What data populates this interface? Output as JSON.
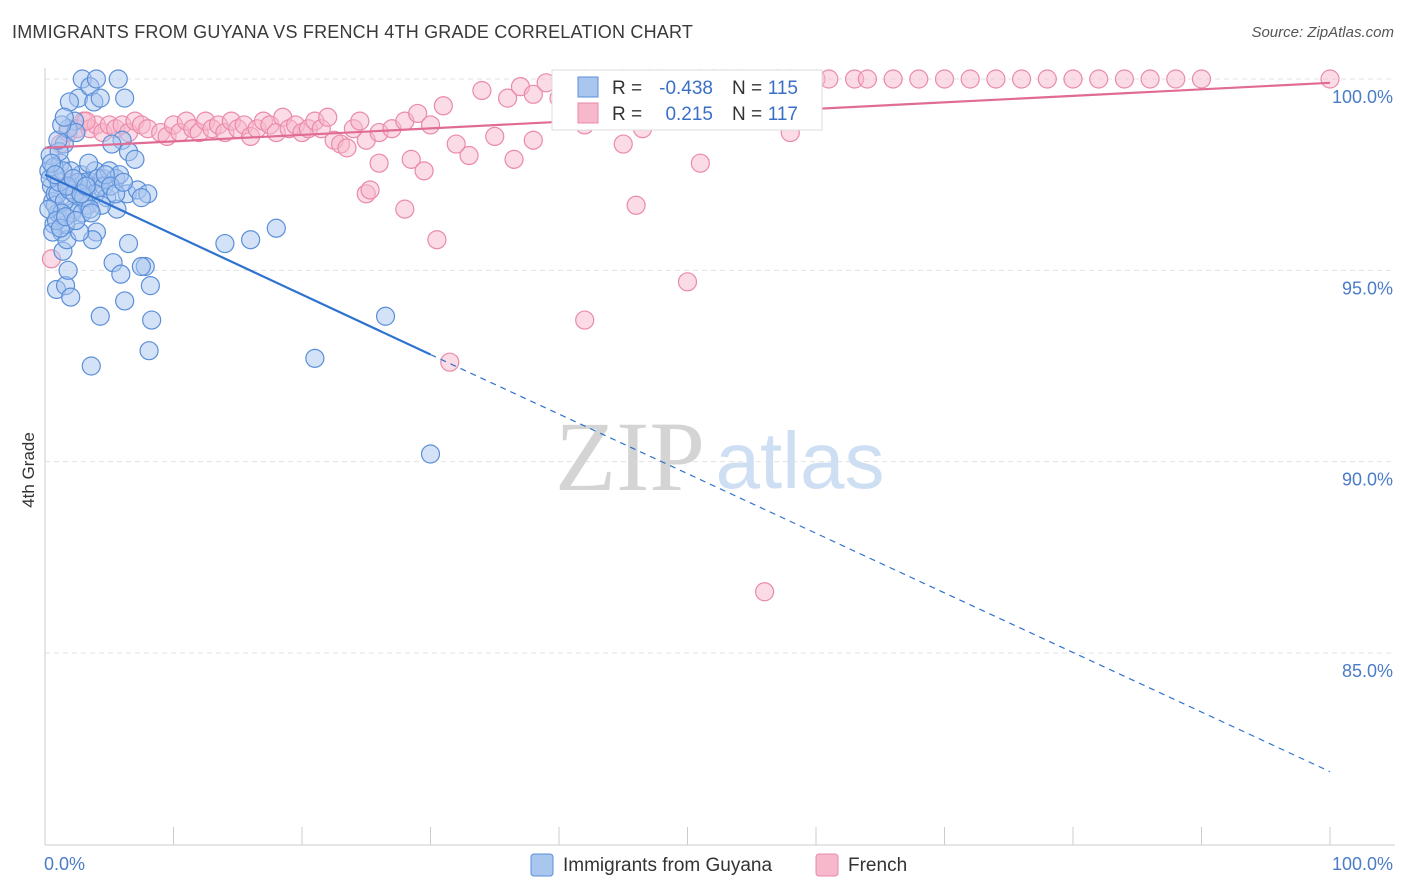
{
  "title": "IMMIGRANTS FROM GUYANA VS FRENCH 4TH GRADE CORRELATION CHART",
  "source": "Source: ZipAtlas.com",
  "watermark": {
    "part1": "ZIP",
    "part2": "atlas"
  },
  "chart_data": {
    "type": "scatter",
    "ylabel": "4th Grade",
    "xlim": [
      0,
      100
    ],
    "ylim": [
      80.5,
      100.3
    ],
    "x_tick_labels": [
      "0.0%",
      "100.0%"
    ],
    "y_ticks": [
      {
        "value": 100,
        "label": "100.0%"
      },
      {
        "value": 95,
        "label": "95.0%"
      },
      {
        "value": 90,
        "label": "90.0%"
      },
      {
        "value": 85,
        "label": "85.0%"
      }
    ],
    "colors": {
      "guyana_fill": "#a9c6ef",
      "guyana_stroke": "#5a8fd8",
      "guyana_line": "#2f72d0",
      "french_fill": "#f7b8cb",
      "french_stroke": "#ea8aaa",
      "french_line": "#e06b95",
      "tick_text": "#4a7cc7",
      "grid": "#e2e2e2"
    },
    "legend": {
      "rows": [
        {
          "r_label": "R =",
          "r_value": "-0.438",
          "n_label": "N =",
          "n_value": "115"
        },
        {
          "r_label": "R =",
          "r_value": "0.215",
          "n_label": "N =",
          "n_value": "117"
        }
      ]
    },
    "bottom_legend": [
      "Immigrants from Guyana",
      "French"
    ],
    "trendlines": [
      {
        "series": "Immigrants from Guyana",
        "x0": 0,
        "y0": 97.5,
        "x1": 30,
        "y1": 92.8,
        "dash_to_x": 100,
        "dash_to_y": 81.9
      },
      {
        "series": "French",
        "x0": 0,
        "y0": 98.2,
        "x1": 100,
        "y1": 99.9
      }
    ],
    "series": [
      {
        "name": "Immigrants from Guyana",
        "points": [
          [
            0.3,
            97.6
          ],
          [
            0.5,
            97.2
          ],
          [
            0.6,
            96.8
          ],
          [
            0.4,
            98.0
          ],
          [
            0.7,
            96.2
          ],
          [
            0.8,
            97.0
          ],
          [
            1.0,
            96.5
          ],
          [
            1.2,
            97.8
          ],
          [
            1.3,
            96.0
          ],
          [
            1.5,
            98.3
          ],
          [
            0.9,
            94.5
          ],
          [
            1.6,
            94.6
          ],
          [
            2.0,
            94.3
          ],
          [
            1.8,
            95.0
          ],
          [
            1.4,
            95.5
          ],
          [
            1.7,
            95.8
          ],
          [
            2.2,
            96.6
          ],
          [
            2.5,
            97.2
          ],
          [
            2.8,
            97.5
          ],
          [
            3.0,
            97.0
          ],
          [
            3.3,
            96.7
          ],
          [
            3.6,
            97.3
          ],
          [
            3.9,
            97.6
          ],
          [
            4.2,
            97.2
          ],
          [
            4.5,
            97.4
          ],
          [
            5.0,
            97.6
          ],
          [
            5.5,
            97.4
          ],
          [
            6.0,
            98.4
          ],
          [
            6.5,
            98.1
          ],
          [
            7.0,
            97.9
          ],
          [
            2.6,
            99.5
          ],
          [
            2.9,
            100.0
          ],
          [
            3.5,
            99.8
          ],
          [
            3.8,
            99.4
          ],
          [
            4.0,
            100.0
          ],
          [
            4.3,
            99.5
          ],
          [
            5.7,
            100.0
          ],
          [
            6.2,
            99.5
          ],
          [
            1.9,
            99.4
          ],
          [
            2.3,
            98.9
          ],
          [
            1.1,
            98.1
          ],
          [
            1.8,
            98.7
          ],
          [
            2.4,
            98.6
          ],
          [
            3.1,
            97.3
          ],
          [
            3.4,
            97.8
          ],
          [
            4.1,
            97.4
          ],
          [
            4.6,
            97.2
          ],
          [
            5.2,
            98.3
          ],
          [
            5.8,
            97.5
          ],
          [
            6.4,
            97.0
          ],
          [
            7.2,
            97.1
          ],
          [
            8.0,
            97.0
          ],
          [
            7.5,
            96.9
          ],
          [
            4.8,
            96.9
          ],
          [
            5.6,
            96.6
          ],
          [
            4.0,
            96.0
          ],
          [
            3.7,
            95.8
          ],
          [
            2.7,
            96.0
          ],
          [
            1.6,
            96.2
          ],
          [
            0.8,
            96.7
          ],
          [
            6.5,
            95.7
          ],
          [
            7.8,
            95.1
          ],
          [
            7.5,
            95.1
          ],
          [
            8.2,
            94.6
          ],
          [
            5.3,
            95.2
          ],
          [
            5.9,
            94.9
          ],
          [
            6.2,
            94.2
          ],
          [
            4.3,
            93.8
          ],
          [
            8.3,
            93.7
          ],
          [
            8.1,
            92.9
          ],
          [
            3.6,
            92.5
          ],
          [
            14.0,
            95.7
          ],
          [
            16.0,
            95.8
          ],
          [
            18.0,
            96.1
          ],
          [
            21.0,
            92.7
          ],
          [
            26.5,
            93.8
          ],
          [
            30.0,
            90.2
          ],
          [
            2.1,
            96.5
          ],
          [
            2.9,
            96.5
          ],
          [
            3.3,
            96.9
          ],
          [
            3.9,
            97.0
          ],
          [
            4.4,
            96.7
          ],
          [
            1.0,
            97.0
          ],
          [
            1.5,
            96.8
          ],
          [
            2.0,
            97.6
          ],
          [
            2.6,
            97.3
          ],
          [
            0.6,
            96.0
          ],
          [
            1.3,
            96.5
          ],
          [
            1.9,
            97.1
          ],
          [
            2.3,
            97.0
          ],
          [
            3.0,
            96.9
          ],
          [
            3.5,
            96.6
          ],
          [
            4.7,
            97.5
          ],
          [
            5.1,
            97.2
          ],
          [
            5.5,
            97.0
          ],
          [
            6.1,
            97.3
          ],
          [
            0.4,
            97.4
          ],
          [
            0.7,
            97.7
          ],
          [
            1.1,
            97.3
          ],
          [
            1.4,
            97.6
          ],
          [
            1.7,
            97.2
          ],
          [
            2.2,
            97.4
          ],
          [
            2.8,
            97.0
          ],
          [
            3.2,
            97.2
          ],
          [
            0.3,
            96.6
          ],
          [
            0.9,
            96.3
          ],
          [
            1.2,
            96.1
          ],
          [
            1.6,
            96.4
          ],
          [
            2.4,
            96.3
          ],
          [
            3.6,
            96.5
          ],
          [
            0.5,
            97.8
          ],
          [
            0.8,
            97.5
          ],
          [
            1.0,
            98.4
          ],
          [
            1.3,
            98.8
          ],
          [
            1.5,
            99.0
          ]
        ]
      },
      {
        "name": "French",
        "points": [
          [
            0.5,
            95.3
          ],
          [
            1.2,
            98.3
          ],
          [
            1.8,
            98.6
          ],
          [
            2.5,
            98.7
          ],
          [
            3.0,
            98.9
          ],
          [
            3.5,
            98.7
          ],
          [
            4.0,
            98.8
          ],
          [
            4.5,
            98.6
          ],
          [
            5.0,
            98.8
          ],
          [
            5.5,
            98.7
          ],
          [
            6.0,
            98.8
          ],
          [
            6.5,
            98.6
          ],
          [
            7.0,
            98.9
          ],
          [
            7.5,
            98.8
          ],
          [
            8.0,
            98.7
          ],
          [
            9.0,
            98.6
          ],
          [
            9.5,
            98.5
          ],
          [
            10.0,
            98.8
          ],
          [
            10.5,
            98.6
          ],
          [
            11.0,
            98.9
          ],
          [
            11.5,
            98.7
          ],
          [
            12.0,
            98.6
          ],
          [
            12.5,
            98.9
          ],
          [
            13.0,
            98.7
          ],
          [
            13.5,
            98.8
          ],
          [
            14.0,
            98.6
          ],
          [
            14.5,
            98.9
          ],
          [
            15.0,
            98.7
          ],
          [
            15.5,
            98.8
          ],
          [
            16.0,
            98.5
          ],
          [
            16.5,
            98.7
          ],
          [
            17.0,
            98.9
          ],
          [
            17.5,
            98.8
          ],
          [
            18.0,
            98.6
          ],
          [
            18.5,
            99.0
          ],
          [
            19.0,
            98.7
          ],
          [
            19.5,
            98.8
          ],
          [
            20.0,
            98.6
          ],
          [
            20.5,
            98.7
          ],
          [
            21.0,
            98.9
          ],
          [
            21.5,
            98.7
          ],
          [
            22.0,
            99.0
          ],
          [
            22.5,
            98.4
          ],
          [
            23.0,
            98.3
          ],
          [
            23.5,
            98.2
          ],
          [
            24.0,
            98.7
          ],
          [
            24.5,
            98.9
          ],
          [
            25.0,
            98.4
          ],
          [
            26.0,
            98.6
          ],
          [
            27.0,
            98.7
          ],
          [
            28.0,
            98.9
          ],
          [
            29.0,
            99.1
          ],
          [
            30.0,
            98.8
          ],
          [
            31.0,
            99.3
          ],
          [
            32.0,
            98.3
          ],
          [
            33.0,
            98.0
          ],
          [
            34.0,
            99.7
          ],
          [
            35.0,
            98.5
          ],
          [
            36.0,
            99.5
          ],
          [
            37.0,
            99.8
          ],
          [
            38.0,
            99.6
          ],
          [
            39.0,
            99.9
          ],
          [
            40.0,
            99.5
          ],
          [
            41.0,
            99.9
          ],
          [
            42.0,
            100.0
          ],
          [
            43.0,
            99.9
          ],
          [
            44.0,
            99.8
          ],
          [
            45.0,
            100.0
          ],
          [
            46.0,
            100.0
          ],
          [
            47.0,
            100.0
          ],
          [
            48.0,
            100.0
          ],
          [
            49.0,
            99.9
          ],
          [
            50.0,
            100.0
          ],
          [
            51.0,
            100.0
          ],
          [
            52.0,
            100.0
          ],
          [
            53.0,
            100.0
          ],
          [
            54.0,
            100.0
          ],
          [
            55.0,
            100.0
          ],
          [
            56.0,
            99.8
          ],
          [
            57.0,
            100.0
          ],
          [
            58.0,
            100.0
          ],
          [
            60.0,
            100.0
          ],
          [
            61.0,
            100.0
          ],
          [
            63.0,
            100.0
          ],
          [
            64.0,
            100.0
          ],
          [
            66.0,
            100.0
          ],
          [
            68.0,
            100.0
          ],
          [
            70.0,
            100.0
          ],
          [
            72.0,
            100.0
          ],
          [
            74.0,
            100.0
          ],
          [
            76.0,
            100.0
          ],
          [
            78.0,
            100.0
          ],
          [
            80.0,
            100.0
          ],
          [
            82.0,
            100.0
          ],
          [
            84.0,
            100.0
          ],
          [
            86.0,
            100.0
          ],
          [
            88.0,
            100.0
          ],
          [
            90.0,
            100.0
          ],
          [
            100.0,
            100.0
          ],
          [
            26.0,
            97.8
          ],
          [
            25.0,
            97.0
          ],
          [
            25.3,
            97.1
          ],
          [
            28.5,
            97.9
          ],
          [
            29.5,
            97.6
          ],
          [
            28.0,
            96.6
          ],
          [
            30.5,
            95.8
          ],
          [
            38.0,
            98.4
          ],
          [
            36.5,
            97.9
          ],
          [
            42.0,
            98.8
          ],
          [
            45.0,
            98.3
          ],
          [
            46.5,
            98.7
          ],
          [
            42.0,
            99.1
          ],
          [
            42.5,
            98.9
          ],
          [
            42.0,
            93.7
          ],
          [
            46.0,
            96.7
          ],
          [
            51.0,
            97.8
          ],
          [
            58.0,
            98.6
          ],
          [
            50.0,
            94.7
          ],
          [
            31.5,
            92.6
          ],
          [
            56.0,
            86.6
          ],
          [
            2.0,
            97.3
          ],
          [
            3.2,
            98.9
          ]
        ]
      }
    ]
  }
}
